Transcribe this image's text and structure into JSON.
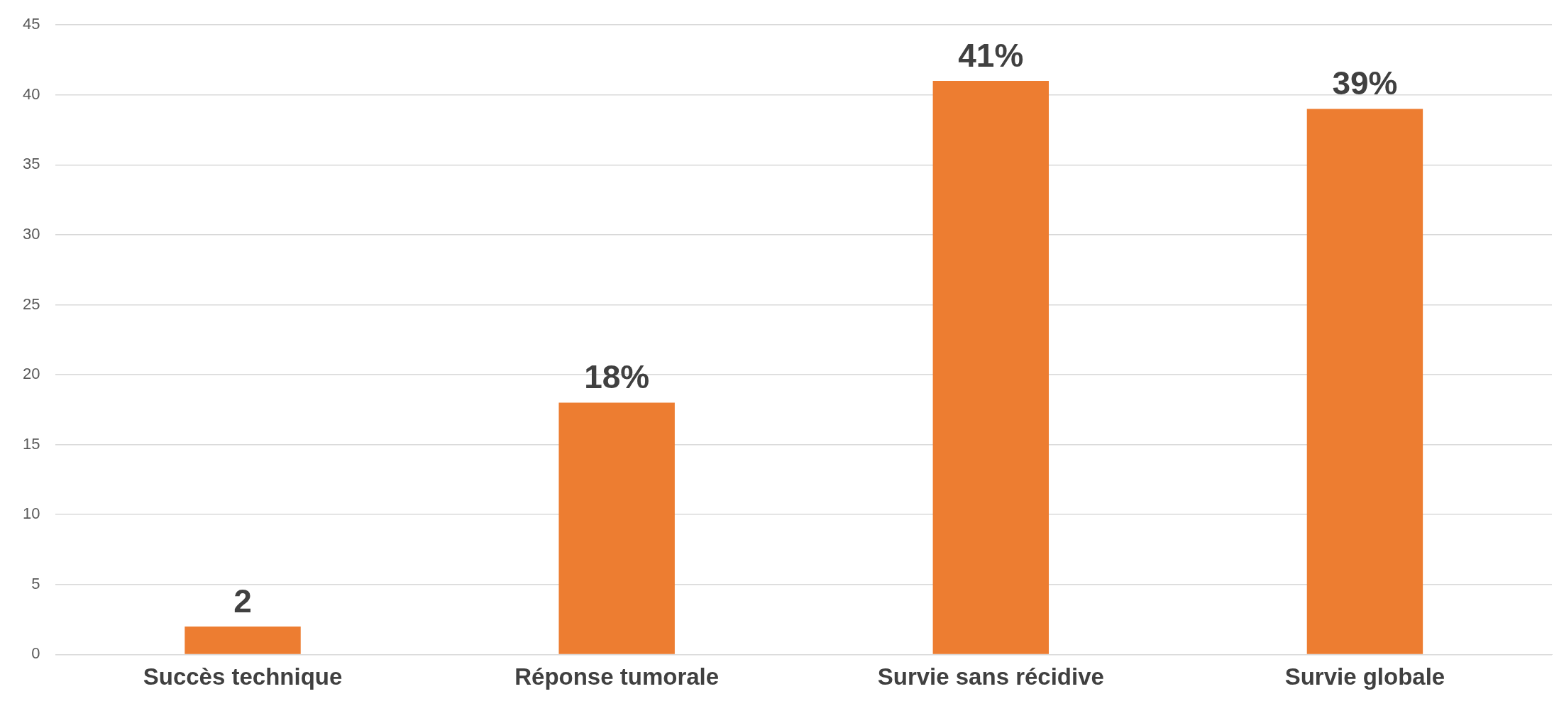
{
  "chart_data": {
    "type": "bar",
    "categories": [
      "Succès technique",
      "Réponse tumorale",
      "Survie sans récidive",
      "Survie globale"
    ],
    "values": [
      2,
      18,
      41,
      39
    ],
    "color": "#ed7d31",
    "value_labels": [
      "2",
      "18%",
      "41%",
      "39%"
    ],
    "ylim": [
      0,
      45
    ],
    "yticks": [
      0,
      5,
      10,
      15,
      20,
      25,
      30,
      35,
      40,
      45
    ],
    "grid": "y"
  }
}
